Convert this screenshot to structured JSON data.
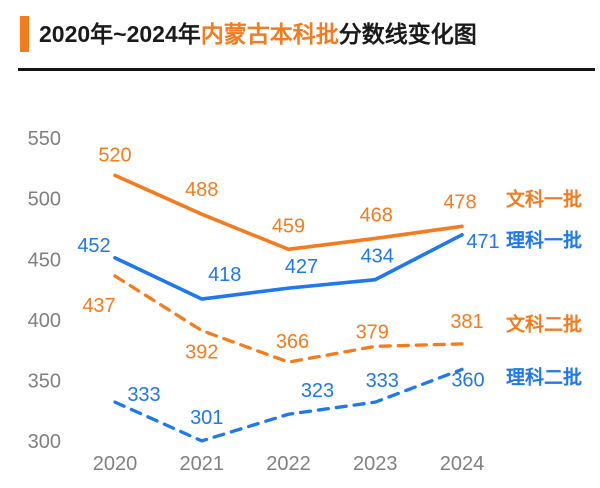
{
  "header": {
    "title_prefix": "2020年~2024年",
    "title_highlight": "内蒙古本科批",
    "title_suffix": "分数线变化图",
    "accent_color": "#F57C1E"
  },
  "chart_data": {
    "type": "line",
    "title": "2020年~2024年内蒙古本科批分数线变化图",
    "categories": [
      "2020",
      "2021",
      "2022",
      "2023",
      "2024"
    ],
    "series": [
      {
        "name": "文科一批",
        "values": [
          520,
          488,
          459,
          468,
          478
        ],
        "color": "#F57C1E",
        "line_style": "solid"
      },
      {
        "name": "理科一批",
        "values": [
          452,
          418,
          427,
          434,
          471
        ],
        "color": "#1E78F0",
        "line_style": "solid"
      },
      {
        "name": "文科二批",
        "values": [
          437,
          392,
          366,
          379,
          381
        ],
        "color": "#F57C1E",
        "line_style": "dashed"
      },
      {
        "name": "理科二批",
        "values": [
          333,
          301,
          323,
          333,
          360
        ],
        "color": "#1E78F0",
        "line_style": "dashed"
      }
    ],
    "yticks": [
      550,
      500,
      450,
      400,
      350,
      300
    ],
    "ylim": [
      280,
      560
    ],
    "grid": false,
    "axes_visible": false,
    "data_labels": true,
    "legend_position": "right-of-line-ends",
    "tick_color": "#808080"
  }
}
